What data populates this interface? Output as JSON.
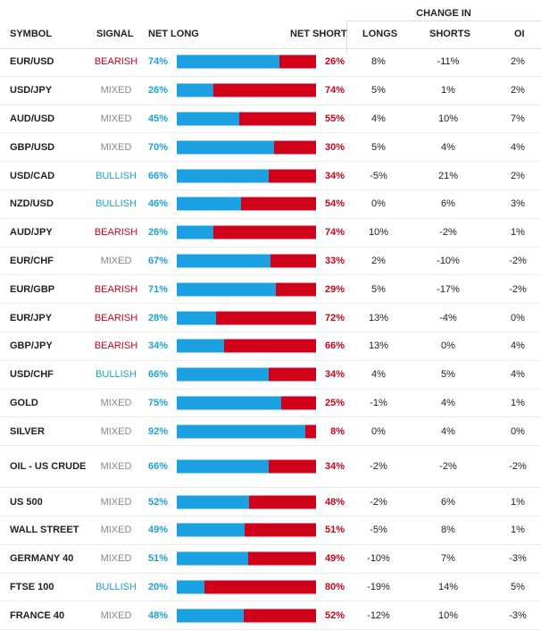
{
  "header": {
    "change_in": "CHANGE IN",
    "symbol": "SYMBOL",
    "signal": "SIGNAL",
    "net_long": "NET LONG",
    "net_short": "NET SHORT",
    "longs": "LONGS",
    "shorts": "SHORTS",
    "oi": "OI"
  },
  "colors": {
    "long": "#1ba1e2",
    "short": "#d0021b",
    "mixed": "#888888"
  },
  "rows": [
    {
      "symbol": "EUR/USD",
      "signal": "BEARISH",
      "net_long": "74%",
      "long_pct": 74,
      "net_short": "26%",
      "longs": "8%",
      "shorts": "-11%",
      "oi": "2%"
    },
    {
      "symbol": "USD/JPY",
      "signal": "MIXED",
      "net_long": "26%",
      "long_pct": 26,
      "net_short": "74%",
      "longs": "5%",
      "shorts": "1%",
      "oi": "2%"
    },
    {
      "symbol": "AUD/USD",
      "signal": "MIXED",
      "net_long": "45%",
      "long_pct": 45,
      "net_short": "55%",
      "longs": "4%",
      "shorts": "10%",
      "oi": "7%"
    },
    {
      "symbol": "GBP/USD",
      "signal": "MIXED",
      "net_long": "70%",
      "long_pct": 70,
      "net_short": "30%",
      "longs": "5%",
      "shorts": "4%",
      "oi": "4%"
    },
    {
      "symbol": "USD/CAD",
      "signal": "BULLISH",
      "net_long": "66%",
      "long_pct": 66,
      "net_short": "34%",
      "longs": "-5%",
      "shorts": "21%",
      "oi": "2%"
    },
    {
      "symbol": "NZD/USD",
      "signal": "BULLISH",
      "net_long": "46%",
      "long_pct": 46,
      "net_short": "54%",
      "longs": "0%",
      "shorts": "6%",
      "oi": "3%"
    },
    {
      "symbol": "AUD/JPY",
      "signal": "BEARISH",
      "net_long": "26%",
      "long_pct": 26,
      "net_short": "74%",
      "longs": "10%",
      "shorts": "-2%",
      "oi": "1%"
    },
    {
      "symbol": "EUR/CHF",
      "signal": "MIXED",
      "net_long": "67%",
      "long_pct": 67,
      "net_short": "33%",
      "longs": "2%",
      "shorts": "-10%",
      "oi": "-2%"
    },
    {
      "symbol": "EUR/GBP",
      "signal": "BEARISH",
      "net_long": "71%",
      "long_pct": 71,
      "net_short": "29%",
      "longs": "5%",
      "shorts": "-17%",
      "oi": "-2%"
    },
    {
      "symbol": "EUR/JPY",
      "signal": "BEARISH",
      "net_long": "28%",
      "long_pct": 28,
      "net_short": "72%",
      "longs": "13%",
      "shorts": "-4%",
      "oi": "0%"
    },
    {
      "symbol": "GBP/JPY",
      "signal": "BEARISH",
      "net_long": "34%",
      "long_pct": 34,
      "net_short": "66%",
      "longs": "13%",
      "shorts": "0%",
      "oi": "4%"
    },
    {
      "symbol": "USD/CHF",
      "signal": "BULLISH",
      "net_long": "66%",
      "long_pct": 66,
      "net_short": "34%",
      "longs": "4%",
      "shorts": "5%",
      "oi": "4%"
    },
    {
      "symbol": "GOLD",
      "signal": "MIXED",
      "net_long": "75%",
      "long_pct": 75,
      "net_short": "25%",
      "longs": "-1%",
      "shorts": "4%",
      "oi": "1%"
    },
    {
      "symbol": "SILVER",
      "signal": "MIXED",
      "net_long": "92%",
      "long_pct": 92,
      "net_short": "8%",
      "longs": "0%",
      "shorts": "4%",
      "oi": "0%"
    },
    {
      "symbol": "OIL - US CRUDE",
      "signal": "MIXED",
      "net_long": "66%",
      "long_pct": 66,
      "net_short": "34%",
      "longs": "-2%",
      "shorts": "-2%",
      "oi": "-2%",
      "tall": true
    },
    {
      "symbol": "US 500",
      "signal": "MIXED",
      "net_long": "52%",
      "long_pct": 52,
      "net_short": "48%",
      "longs": "-2%",
      "shorts": "6%",
      "oi": "1%"
    },
    {
      "symbol": "WALL STREET",
      "signal": "MIXED",
      "net_long": "49%",
      "long_pct": 49,
      "net_short": "51%",
      "longs": "-5%",
      "shorts": "8%",
      "oi": "1%"
    },
    {
      "symbol": "GERMANY 40",
      "signal": "MIXED",
      "net_long": "51%",
      "long_pct": 51,
      "net_short": "49%",
      "longs": "-10%",
      "shorts": "7%",
      "oi": "-3%"
    },
    {
      "symbol": "FTSE 100",
      "signal": "BULLISH",
      "net_long": "20%",
      "long_pct": 20,
      "net_short": "80%",
      "longs": "-19%",
      "shorts": "14%",
      "oi": "5%"
    },
    {
      "symbol": "FRANCE 40",
      "signal": "MIXED",
      "net_long": "48%",
      "long_pct": 48,
      "net_short": "52%",
      "longs": "-12%",
      "shorts": "10%",
      "oi": "-3%"
    }
  ]
}
